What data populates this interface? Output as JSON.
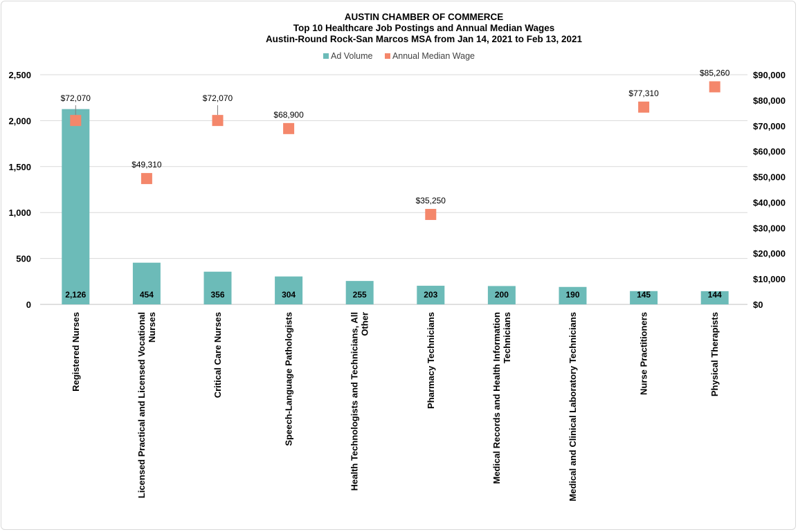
{
  "chart_data": {
    "type": "bar",
    "title": [
      "AUSTIN CHAMBER OF COMMERCE",
      "Top 10 Healthcare Job Postings and Annual Median Wages",
      "Austin-Round Rock-San Marcos MSA from Jan 14, 2021 to Feb 13, 2021"
    ],
    "categories": [
      "Registered Nurses",
      "Licensed Practical and Licensed Vocational Nurses",
      "Critical Care Nurses",
      "Speech-Language Pathologists",
      "Health Technologists and Technicians, All Other",
      "Pharmacy Technicians",
      "Medical Records and Health Information Technicians",
      "Medical and Clinical Laboratory Technicians",
      "Nurse Practitioners",
      "Physical Therapists"
    ],
    "category_label_lines": [
      [
        "Registered Nurses"
      ],
      [
        "Licensed Practical and Licensed Vocational",
        "Nurses"
      ],
      [
        "Critical Care Nurses"
      ],
      [
        "Speech-Language Pathologists"
      ],
      [
        "Health Technologists and Technicians, All",
        "Other"
      ],
      [
        "Pharmacy Technicians"
      ],
      [
        "Medical Records and Health Information",
        "Technicians"
      ],
      [
        "Medical and Clinical Laboratory Technicians"
      ],
      [
        "Nurse Practitioners"
      ],
      [
        "Physical Therapists"
      ]
    ],
    "series": [
      {
        "name": "Ad Volume",
        "type": "bar",
        "axis": "left",
        "color": "#6cbbb8",
        "values": [
          2126,
          454,
          356,
          304,
          255,
          203,
          200,
          190,
          145,
          144
        ],
        "labels": [
          "2,126",
          "454",
          "356",
          "304",
          "255",
          "203",
          "200",
          "190",
          "145",
          "144"
        ]
      },
      {
        "name": "Annual Median Wage",
        "type": "scatter",
        "axis": "right",
        "color": "#f4876b",
        "values": [
          72070,
          49310,
          72070,
          68900,
          null,
          35250,
          null,
          null,
          77310,
          85260
        ],
        "labels": [
          "$72,070",
          "$49,310",
          "$72,070",
          "$68,900",
          "",
          "$35,250",
          "",
          "",
          "$77,310",
          "$85,260"
        ]
      }
    ],
    "y_left": {
      "min": 0,
      "max": 2500,
      "ticks": [
        0,
        500,
        1000,
        1500,
        2000,
        2500
      ],
      "tick_labels": [
        "0",
        "500",
        "1,000",
        "1,500",
        "2,000",
        "2,500"
      ]
    },
    "y_right": {
      "min": 0,
      "max": 90000,
      "ticks": [
        0,
        10000,
        20000,
        30000,
        40000,
        50000,
        60000,
        70000,
        80000,
        90000
      ],
      "tick_labels": [
        "$0",
        "$10,000",
        "$20,000",
        "$30,000",
        "$40,000",
        "$50,000",
        "$60,000",
        "$70,000",
        "$80,000",
        "$90,000"
      ]
    },
    "grid": true,
    "legend_position": "top"
  }
}
